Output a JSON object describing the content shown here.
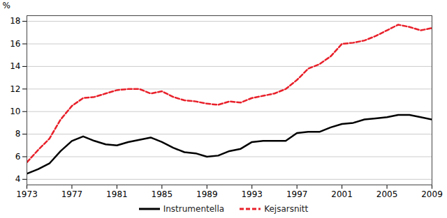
{
  "chart_data": {
    "type": "line",
    "y_label": "%",
    "x": [
      1973,
      1974,
      1975,
      1976,
      1977,
      1978,
      1979,
      1980,
      1981,
      1982,
      1983,
      1984,
      1985,
      1986,
      1987,
      1988,
      1989,
      1990,
      1991,
      1992,
      1993,
      1994,
      1995,
      1996,
      1997,
      1998,
      1999,
      2000,
      2001,
      2002,
      2003,
      2004,
      2005,
      2006,
      2007,
      2008,
      2009
    ],
    "series": [
      {
        "name": "Instrumentella",
        "color": "#000000",
        "line_style": "solid",
        "values": [
          4.5,
          4.9,
          5.4,
          6.5,
          7.4,
          7.8,
          7.4,
          7.1,
          7.0,
          7.3,
          7.5,
          7.7,
          7.3,
          6.8,
          6.4,
          6.3,
          6.0,
          6.1,
          6.5,
          6.7,
          7.3,
          7.4,
          7.4,
          7.4,
          8.1,
          8.2,
          8.2,
          8.6,
          8.9,
          9.0,
          9.3,
          9.4,
          9.5,
          9.7,
          9.7,
          9.5,
          9.3
        ]
      },
      {
        "name": "Kejsarsnitt",
        "color": "#e8202a",
        "line_style": "dashed",
        "values": [
          5.5,
          6.6,
          7.6,
          9.3,
          10.5,
          11.2,
          11.3,
          11.6,
          11.9,
          12.0,
          12.0,
          11.6,
          11.8,
          11.3,
          11.0,
          10.9,
          10.7,
          10.6,
          10.9,
          10.8,
          11.2,
          11.4,
          11.6,
          12.0,
          12.8,
          13.8,
          14.2,
          14.9,
          16.0,
          16.1,
          16.3,
          16.7,
          17.2,
          17.7,
          17.5,
          17.2,
          17.4
        ]
      }
    ],
    "xlim": [
      1973,
      2009
    ],
    "xticks": [
      1973,
      1977,
      1981,
      1985,
      1989,
      1993,
      1997,
      2001,
      2005,
      2009
    ],
    "ylim": [
      3.5,
      18.5
    ],
    "yticks": [
      4,
      6,
      8,
      10,
      12,
      14,
      16,
      18
    ],
    "grid": true,
    "legend": "bottom"
  }
}
